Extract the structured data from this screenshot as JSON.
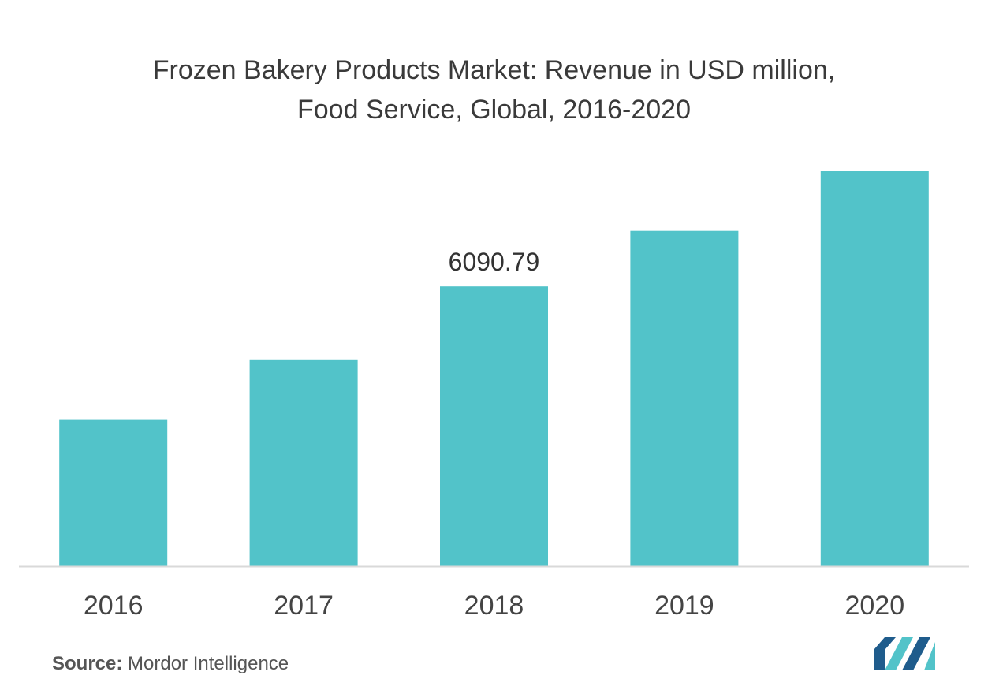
{
  "chart_data": {
    "type": "bar",
    "title_lines": [
      "Frozen Bakery Products Market: Revenue in USD million,",
      "Food Service, Global, 2016-2020"
    ],
    "categories": [
      "2016",
      "2017",
      "2018",
      "2019",
      "2020"
    ],
    "values": [
      3200,
      4500,
      6090.79,
      7300,
      8600
    ],
    "data_labels": [
      null,
      null,
      "6090.79",
      null,
      null
    ],
    "ylim": [
      0,
      9000
    ],
    "xlabel": "",
    "ylabel": "",
    "grid": false,
    "legend": "none",
    "colors": {
      "bar": "#52C3C9",
      "axis": "#d9d9d9",
      "tick_text": "#444444"
    }
  },
  "footer": {
    "source_label": "Source:",
    "source_name": "Mordor Intelligence"
  },
  "logo": {
    "colors": [
      "#1f5c8c",
      "#52C3C9"
    ]
  }
}
